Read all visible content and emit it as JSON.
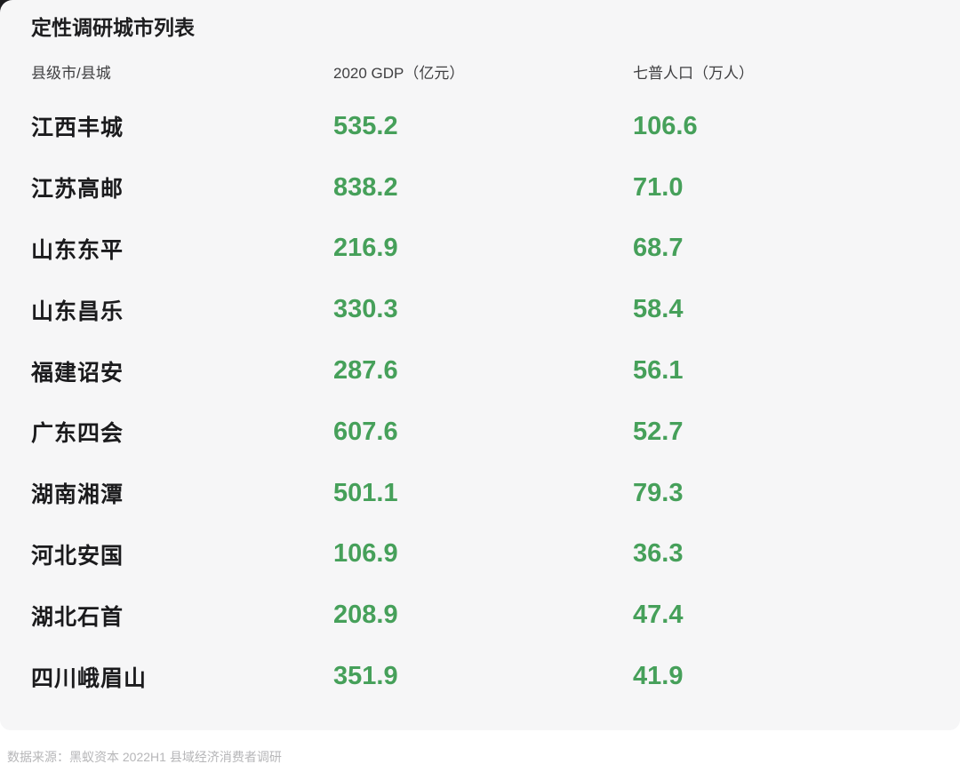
{
  "colors": {
    "value_green": "#46a05a",
    "card_background": "#f6f6f7",
    "title_text": "#1d1d1f",
    "header_text": "#3f3f41",
    "source_text": "#b6b6b8"
  },
  "chart_data": {
    "type": "table",
    "title": "定性调研城市列表",
    "columns": [
      "县级市/县城",
      "2020 GDP（亿元）",
      "七普人口（万人）"
    ],
    "rows": [
      {
        "city": "江西丰城",
        "gdp": "535.2",
        "pop": "106.6"
      },
      {
        "city": "江苏高邮",
        "gdp": "838.2",
        "pop": "71.0"
      },
      {
        "city": "山东东平",
        "gdp": "216.9",
        "pop": "68.7"
      },
      {
        "city": "山东昌乐",
        "gdp": "330.3",
        "pop": "58.4"
      },
      {
        "city": "福建诏安",
        "gdp": "287.6",
        "pop": "56.1"
      },
      {
        "city": "广东四会",
        "gdp": "607.6",
        "pop": "52.7"
      },
      {
        "city": "湖南湘潭",
        "gdp": "501.1",
        "pop": "79.3"
      },
      {
        "city": "河北安国",
        "gdp": "106.9",
        "pop": "36.3"
      },
      {
        "city": "湖北石首",
        "gdp": "208.9",
        "pop": "47.4"
      },
      {
        "city": "四川峨眉山",
        "gdp": "351.9",
        "pop": "41.9"
      }
    ],
    "source": "数据来源：黑蚁资本 2022H1 县域经济消费者调研",
    "layout": {
      "grid": false,
      "legend": "none"
    }
  }
}
